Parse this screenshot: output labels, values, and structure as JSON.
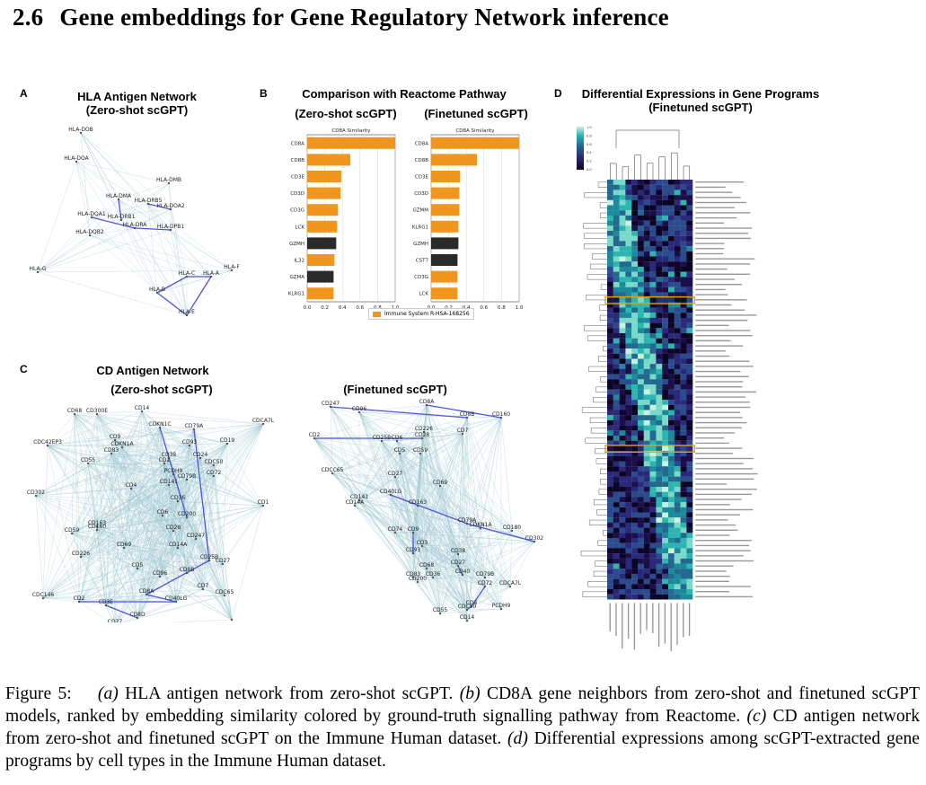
{
  "section": {
    "number": "2.6",
    "title": "Gene embeddings for Gene Regulatory Network inference"
  },
  "panel_a": {
    "label": "A",
    "title_line1": "HLA Antigen Network",
    "title_line2": "(Zero-shot scGPT)",
    "nodes": [
      "HLA-DOB",
      "HLA-DOA",
      "HLA-DMB",
      "HLA-DMA",
      "HLA-DRB5",
      "HLA-DOA2",
      "HLA-DQA1",
      "HLA-DRB1",
      "HLA-DQB2",
      "HLA-DRA",
      "HLA-DPB1",
      "HLA-G",
      "HLA-F",
      "HLA-C",
      "HLA-A",
      "HLA-B",
      "HLA-E"
    ]
  },
  "panel_b": {
    "label": "B",
    "title": "Comparison with Reactome Pathway",
    "left_subtitle": "(Zero-shot scGPT)",
    "right_subtitle": "(Finetuned scGPT)",
    "legend": "Immune System R-HSA-168256",
    "legend_color": "#f0961e",
    "other_color": "#2a2a2a"
  },
  "panel_c": {
    "label": "C",
    "title": "CD Antigen Network",
    "left_subtitle": "(Zero-shot scGPT)",
    "right_subtitle": "(Finetuned scGPT)",
    "left_nodes": [
      "CD14",
      "CD68",
      "CD300E",
      "CDKN1C",
      "CD79A",
      "CD9",
      "CDKN1A",
      "CD93",
      "CD19",
      "CDCA7L",
      "CDC42EP3",
      "CD83",
      "CD38",
      "CD24",
      "CD55",
      "CD2",
      "CDC50",
      "PCDH9",
      "CD79B",
      "CD72",
      "CD4",
      "CD141",
      "CD302",
      "CD36",
      "CD1",
      "CD6",
      "CD200",
      "CD163",
      "CD160",
      "CD28",
      "CD59",
      "CD247",
      "CD69",
      "CD14A",
      "CD226",
      "CD25B",
      "CD27",
      "CD5",
      "CD96",
      "CD8B",
      "CD7",
      "CDC65",
      "CDC146",
      "CD2",
      "CD8A",
      "CD40LG",
      "CD3E",
      "CD8D",
      "CD27"
    ],
    "right_nodes": [
      "CD247",
      "CD96",
      "CD8A",
      "CD160",
      "CD2",
      "CD8B",
      "CD226",
      "CD25B",
      "CD28",
      "CD6",
      "CD7",
      "CD5",
      "CD59",
      "CD27",
      "CDCC65",
      "CD141",
      "CD14A",
      "CD69",
      "CD40LG",
      "CD163",
      "CD74",
      "CD79A",
      "CD9",
      "CDKN1A",
      "CD180",
      "CD3",
      "CD38",
      "CD302",
      "CD93",
      "CD27",
      "CD68",
      "CD40",
      "CD36",
      "CD83",
      "CD200",
      "CD79B",
      "CD72",
      "CDCA7L",
      "CD4",
      "CDC50",
      "PCDH9",
      "CD55",
      "CD14"
    ]
  },
  "panel_d": {
    "label": "D",
    "title_line1": "Differential Expressions in Gene Programs",
    "title_line2": "(Finetuned scGPT)",
    "colorbar_ticks": [
      "1.0",
      "0.8",
      "0.6",
      "0.4",
      "0.2",
      "0.0"
    ],
    "highlight_color": "#e6a000"
  },
  "caption": {
    "fig": "Figure 5:",
    "a_label": "(a)",
    "a_text": "HLA antigen network from zero-shot scGPT.",
    "b_label": "(b)",
    "b_text": "CD8A gene neighbors from zero-shot and finetuned scGPT models, ranked by embedding similarity colored by ground-truth signalling pathway from Reactome.",
    "c_label": "(c)",
    "c_text": "CD antigen network from zero-shot and finetuned scGPT on the Immune Human dataset.",
    "d_label": "(d)",
    "d_text": "Differential expressions among scGPT-extracted gene programs by cell types in the Immune Human dataset."
  },
  "chart_data": [
    {
      "type": "bar",
      "orientation": "horizontal",
      "title": "CD8A Similarity",
      "xlabel": "Similarity",
      "xlim": [
        0,
        1.0
      ],
      "xticks": [
        "0.0",
        "0.2",
        "0.4",
        "0.6",
        "0.8",
        "1.0"
      ],
      "categories": [
        "CD8A",
        "CD8B",
        "CD3E",
        "CD3D",
        "CD3G",
        "LCK",
        "GZMH",
        "IL32",
        "GZMA",
        "KLRG1"
      ],
      "values": [
        1.0,
        0.49,
        0.39,
        0.38,
        0.35,
        0.34,
        0.33,
        0.31,
        0.3,
        0.3
      ],
      "in_pathway": [
        true,
        true,
        true,
        true,
        true,
        true,
        false,
        true,
        false,
        true
      ]
    },
    {
      "type": "bar",
      "orientation": "horizontal",
      "title": "CD8A Similarity",
      "xlabel": "Similarity",
      "xlim": [
        0,
        1.0
      ],
      "xticks": [
        "0.0",
        "0.2",
        "0.4",
        "0.6",
        "0.8",
        "1.0"
      ],
      "categories": [
        "CD8A",
        "CD8B",
        "CD3E",
        "CD3D",
        "GZMM",
        "KLRG1",
        "GZMH",
        "CST7",
        "CD3G",
        "LCK"
      ],
      "values": [
        1.0,
        0.52,
        0.33,
        0.32,
        0.32,
        0.31,
        0.31,
        0.3,
        0.3,
        0.3
      ],
      "in_pathway": [
        true,
        true,
        true,
        true,
        true,
        true,
        false,
        false,
        true,
        true
      ]
    }
  ]
}
